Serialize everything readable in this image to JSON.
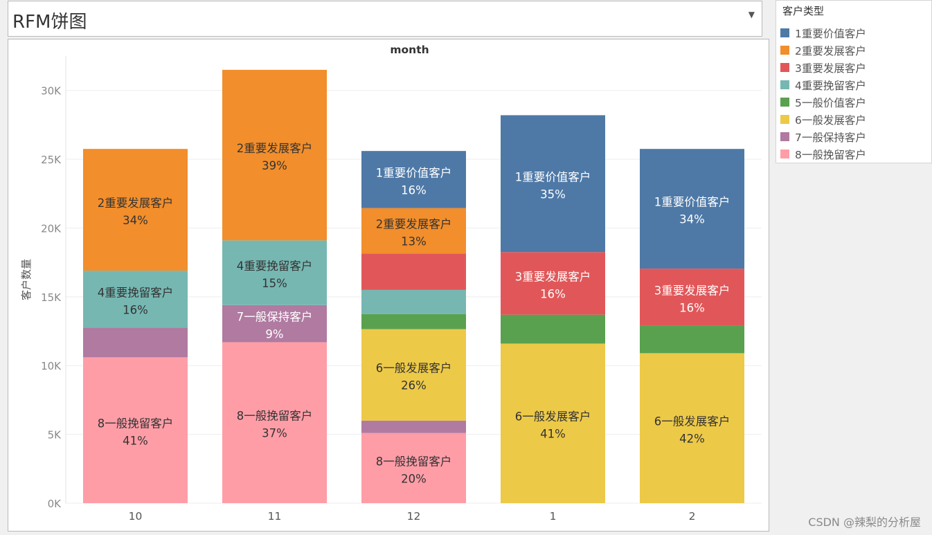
{
  "title": "RFM饼图",
  "legend": {
    "title": "客户类型",
    "items": [
      {
        "label": "1重要价值客户",
        "color": "#4e79a7"
      },
      {
        "label": "2重要发展客户",
        "color": "#f28e2b"
      },
      {
        "label": "3重要发展客户",
        "color": "#e15759"
      },
      {
        "label": "4重要挽留客户",
        "color": "#76b7b2"
      },
      {
        "label": "5一般价值客户",
        "color": "#59a14f"
      },
      {
        "label": "6一般发展客户",
        "color": "#edc948"
      },
      {
        "label": "7一般保持客户",
        "color": "#b07aa1"
      },
      {
        "label": "8一般挽留客户",
        "color": "#ff9da7"
      }
    ]
  },
  "watermark": "CSDN @辣梨的分析屋",
  "chart_data": {
    "type": "bar",
    "stacked": true,
    "title": "month",
    "xlabel": "",
    "ylabel": "客户数量",
    "ylim": [
      0,
      32500
    ],
    "y_ticks": [
      0,
      5000,
      10000,
      15000,
      20000,
      25000,
      30000
    ],
    "y_tick_labels": [
      "0K",
      "5K",
      "10K",
      "15K",
      "20K",
      "25K",
      "30K"
    ],
    "grid": true,
    "legend_position": "top-right",
    "categories": [
      "10",
      "11",
      "12",
      "1",
      "2"
    ],
    "series": [
      {
        "name": "8一般挽留客户",
        "color": "#ff9da7",
        "values": [
          10600,
          11700,
          5100,
          0,
          0
        ],
        "labels": [
          "8一般挽留客户\n41%",
          "8一般挽留客户\n37%",
          "8一般挽留客户\n20%",
          "",
          ""
        ]
      },
      {
        "name": "7一般保持客户",
        "color": "#b07aa1",
        "values": [
          2150,
          2700,
          900,
          0,
          0
        ],
        "labels": [
          "",
          "7一般保持客户\n9%",
          "",
          "",
          ""
        ]
      },
      {
        "name": "6一般发展客户",
        "color": "#edc948",
        "values": [
          0,
          0,
          6650,
          11600,
          10900
        ],
        "labels": [
          "",
          "",
          "6一般发展客户\n26%",
          "6一般发展客户\n41%",
          "6一般发展客户\n42%"
        ]
      },
      {
        "name": "5一般价值客户",
        "color": "#59a14f",
        "values": [
          0,
          0,
          1100,
          2100,
          2000
        ],
        "labels": [
          "",
          "",
          "",
          "",
          ""
        ]
      },
      {
        "name": "4重要挽留客户",
        "color": "#76b7b2",
        "values": [
          4150,
          4700,
          1750,
          0,
          0
        ],
        "labels": [
          "4重要挽留客户\n16%",
          "4重要挽留客户\n15%",
          "",
          "",
          ""
        ]
      },
      {
        "name": "3重要发展客户",
        "color": "#e15759",
        "values": [
          0,
          0,
          2650,
          4550,
          4150
        ],
        "labels": [
          "",
          "",
          "",
          "3重要发展客户\n16%",
          "3重要发展客户\n16%"
        ]
      },
      {
        "name": "2重要发展客户",
        "color": "#f28e2b",
        "values": [
          8850,
          12400,
          3300,
          0,
          0
        ],
        "labels": [
          "2重要发展客户\n34%",
          "2重要发展客户\n39%",
          "2重要发展客户\n13%",
          "",
          ""
        ]
      },
      {
        "name": "1重要价值客户",
        "color": "#4e79a7",
        "values": [
          0,
          0,
          4150,
          9950,
          8700
        ],
        "labels": [
          "",
          "",
          "1重要价值客户\n16%",
          "1重要价值客户\n35%",
          "1重要价值客户\n34%"
        ]
      }
    ]
  }
}
